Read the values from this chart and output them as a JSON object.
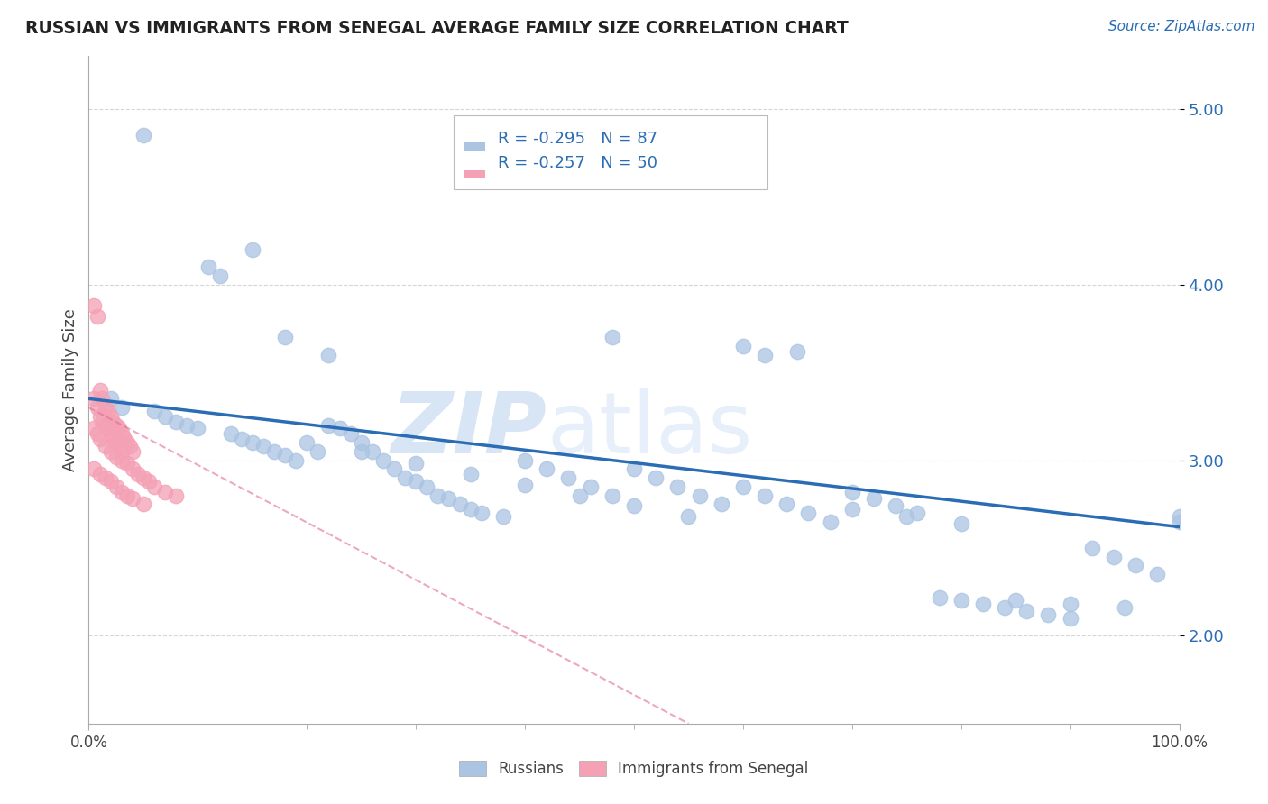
{
  "title": "RUSSIAN VS IMMIGRANTS FROM SENEGAL AVERAGE FAMILY SIZE CORRELATION CHART",
  "source_text": "Source: ZipAtlas.com",
  "ylabel": "Average Family Size",
  "xlim": [
    0,
    1.0
  ],
  "ylim": [
    1.5,
    5.3
  ],
  "yticks": [
    2.0,
    3.0,
    4.0,
    5.0
  ],
  "xtick_labels_ends": [
    "0.0%",
    "100.0%"
  ],
  "xtick_vals_ends": [
    0.0,
    1.0
  ],
  "russian_color": "#aac4e2",
  "senegal_color": "#f4a0b5",
  "trend_russian_color": "#2a6db5",
  "trend_senegal_color": "#e07090",
  "legend_r_russian": "-0.295",
  "legend_n_russian": "87",
  "legend_r_senegal": "-0.257",
  "legend_n_senegal": "50",
  "legend_label_russian": "Russians",
  "legend_label_senegal": "Immigrants from Senegal",
  "watermark_zip": "ZIP",
  "watermark_atlas": "atlas",
  "background_color": "#ffffff",
  "grid_color": "#cccccc",
  "russian_x": [
    0.02,
    0.03,
    0.05,
    0.06,
    0.07,
    0.08,
    0.09,
    0.1,
    0.11,
    0.12,
    0.13,
    0.14,
    0.15,
    0.16,
    0.17,
    0.18,
    0.19,
    0.2,
    0.21,
    0.22,
    0.23,
    0.24,
    0.25,
    0.26,
    0.27,
    0.28,
    0.29,
    0.3,
    0.31,
    0.32,
    0.33,
    0.34,
    0.35,
    0.36,
    0.38,
    0.4,
    0.42,
    0.44,
    0.46,
    0.48,
    0.5,
    0.52,
    0.54,
    0.56,
    0.58,
    0.6,
    0.62,
    0.64,
    0.66,
    0.68,
    0.7,
    0.72,
    0.74,
    0.76,
    0.78,
    0.8,
    0.82,
    0.84,
    0.86,
    0.88,
    0.9,
    0.92,
    0.94,
    0.96,
    0.98,
    1.0,
    0.15,
    0.18,
    0.22,
    0.25,
    0.3,
    0.35,
    0.4,
    0.45,
    0.5,
    0.55,
    0.6,
    0.65,
    0.7,
    0.75,
    0.8,
    0.85,
    0.9,
    0.95,
    1.0,
    0.48,
    0.62
  ],
  "russian_y": [
    3.35,
    3.3,
    4.85,
    3.28,
    3.25,
    3.22,
    3.2,
    3.18,
    4.1,
    4.05,
    3.15,
    3.12,
    3.1,
    3.08,
    3.05,
    3.03,
    3.0,
    3.1,
    3.05,
    3.2,
    3.18,
    3.15,
    3.1,
    3.05,
    3.0,
    2.95,
    2.9,
    2.88,
    2.85,
    2.8,
    2.78,
    2.75,
    2.72,
    2.7,
    2.68,
    3.0,
    2.95,
    2.9,
    2.85,
    2.8,
    2.95,
    2.9,
    2.85,
    2.8,
    2.75,
    2.85,
    2.8,
    2.75,
    2.7,
    2.65,
    2.82,
    2.78,
    2.74,
    2.7,
    2.22,
    2.2,
    2.18,
    2.16,
    2.14,
    2.12,
    2.1,
    2.5,
    2.45,
    2.4,
    2.35,
    2.65,
    4.2,
    3.7,
    3.6,
    3.05,
    2.98,
    2.92,
    2.86,
    2.8,
    2.74,
    2.68,
    3.65,
    3.62,
    2.72,
    2.68,
    2.64,
    2.2,
    2.18,
    2.16,
    2.68,
    3.7,
    3.6
  ],
  "senegal_x": [
    0.005,
    0.008,
    0.01,
    0.012,
    0.015,
    0.018,
    0.02,
    0.022,
    0.025,
    0.028,
    0.03,
    0.032,
    0.035,
    0.038,
    0.04,
    0.005,
    0.008,
    0.01,
    0.012,
    0.015,
    0.018,
    0.02,
    0.022,
    0.025,
    0.028,
    0.03,
    0.005,
    0.008,
    0.01,
    0.015,
    0.02,
    0.025,
    0.03,
    0.035,
    0.04,
    0.045,
    0.05,
    0.055,
    0.06,
    0.07,
    0.08,
    0.005,
    0.01,
    0.015,
    0.02,
    0.025,
    0.03,
    0.035,
    0.04,
    0.05
  ],
  "senegal_y": [
    3.88,
    3.82,
    3.4,
    3.35,
    3.3,
    3.28,
    3.25,
    3.22,
    3.2,
    3.18,
    3.15,
    3.13,
    3.1,
    3.08,
    3.05,
    3.35,
    3.3,
    3.25,
    3.22,
    3.2,
    3.18,
    3.15,
    3.12,
    3.1,
    3.08,
    3.05,
    3.18,
    3.15,
    3.12,
    3.08,
    3.05,
    3.02,
    3.0,
    2.98,
    2.95,
    2.92,
    2.9,
    2.88,
    2.85,
    2.82,
    2.8,
    2.95,
    2.92,
    2.9,
    2.88,
    2.85,
    2.82,
    2.8,
    2.78,
    2.75
  ],
  "trend_rus_x0": 0.0,
  "trend_rus_y0": 3.35,
  "trend_rus_x1": 1.0,
  "trend_rus_y1": 2.62,
  "trend_sen_x0": 0.0,
  "trend_sen_y0": 3.3,
  "trend_sen_x1": 0.55,
  "trend_sen_y1": 1.5
}
